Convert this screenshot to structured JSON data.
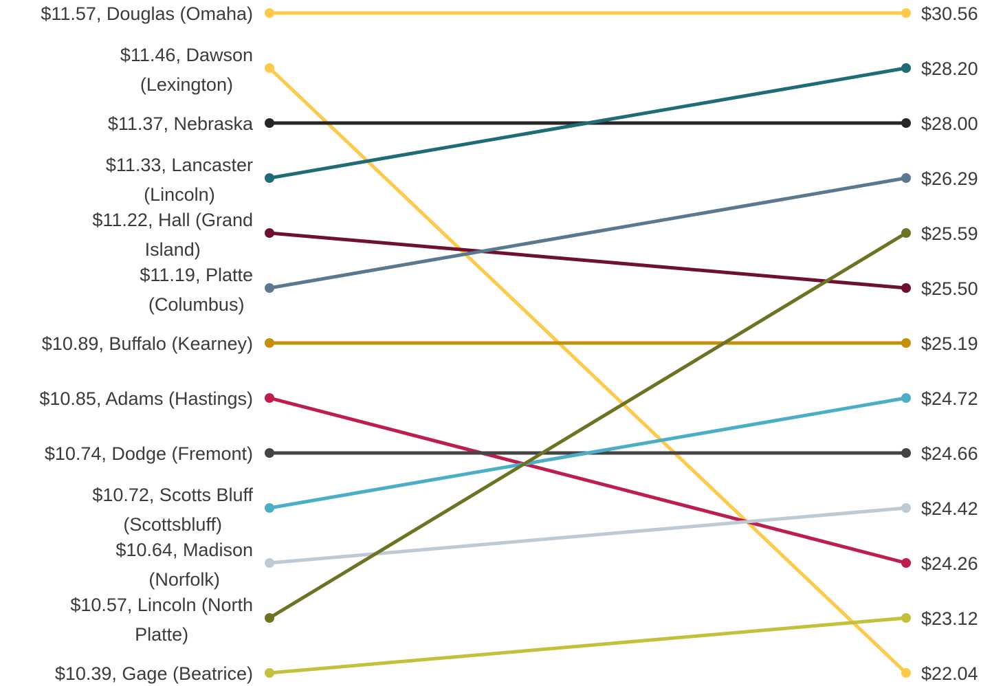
{
  "chart_data": {
    "type": "line",
    "title": "",
    "xlabel": "",
    "ylabel": "",
    "grid": false,
    "legend": "none",
    "series": [
      {
        "left_label": [
          "$11.57, Douglas (Omaha)"
        ],
        "left_value": 11.57,
        "left_rank": 1,
        "right_label": "$30.56",
        "right_value": 30.56,
        "right_rank": 1,
        "color": "#FFC94A"
      },
      {
        "left_label": [
          "$11.46, Dawson",
          "(Lexington)"
        ],
        "left_value": 11.46,
        "left_rank": 2,
        "right_label": "$22.04",
        "right_value": 22.04,
        "right_rank": 13,
        "color": "#FFC94A"
      },
      {
        "left_label": [
          "$11.37, Nebraska"
        ],
        "left_value": 11.37,
        "left_rank": 3,
        "right_label": "$28.00",
        "right_value": 28.0,
        "right_rank": 3,
        "color": "#262626"
      },
      {
        "left_label": [
          "$11.33, Lancaster",
          "(Lincoln)"
        ],
        "left_value": 11.33,
        "left_rank": 4,
        "right_label": "$28.20",
        "right_value": 28.2,
        "right_rank": 2,
        "color": "#1F6B78"
      },
      {
        "left_label": [
          "$11.22, Hall (Grand",
          "Island)"
        ],
        "left_value": 11.22,
        "left_rank": 5,
        "right_label": "$25.50",
        "right_value": 25.5,
        "right_rank": 6,
        "color": "#6E1131"
      },
      {
        "left_label": [
          "$11.19, Platte",
          "(Columbus)"
        ],
        "left_value": 11.19,
        "left_rank": 6,
        "right_label": "$26.29",
        "right_value": 26.29,
        "right_rank": 4,
        "color": "#5C7890"
      },
      {
        "left_label": [
          "$10.89, Buffalo (Kearney)"
        ],
        "left_value": 10.89,
        "left_rank": 7,
        "right_label": "$25.19",
        "right_value": 25.19,
        "right_rank": 7,
        "color": "#C48F0A"
      },
      {
        "left_label": [
          "$10.85, Adams (Hastings)"
        ],
        "left_value": 10.85,
        "left_rank": 8,
        "right_label": "$24.26",
        "right_value": 24.26,
        "right_rank": 11,
        "color": "#BE1E4E"
      },
      {
        "left_label": [
          "$10.74, Dodge (Fremont)"
        ],
        "left_value": 10.74,
        "left_rank": 9,
        "right_label": "$24.66",
        "right_value": 24.66,
        "right_rank": 9,
        "color": "#444444"
      },
      {
        "left_label": [
          "$10.72, Scotts Bluff",
          "(Scottsbluff)"
        ],
        "left_value": 10.72,
        "left_rank": 10,
        "right_label": "$24.72",
        "right_value": 24.72,
        "right_rank": 8,
        "color": "#4BAEC7"
      },
      {
        "left_label": [
          "$10.64, Madison",
          "(Norfolk)"
        ],
        "left_value": 10.64,
        "left_rank": 11,
        "right_label": "$24.42",
        "right_value": 24.42,
        "right_rank": 10,
        "color": "#BDCAD6"
      },
      {
        "left_label": [
          "$10.57, Lincoln (North",
          "Platte)"
        ],
        "left_value": 10.57,
        "left_rank": 12,
        "right_label": "$25.59",
        "right_value": 25.59,
        "right_rank": 5,
        "color": "#6E7324"
      },
      {
        "left_label": [
          "$10.39, Gage (Beatrice)"
        ],
        "left_value": 10.39,
        "left_rank": 13,
        "right_label": "$23.12",
        "right_value": 23.12,
        "right_rank": 12,
        "color": "#C2C23A"
      }
    ]
  }
}
